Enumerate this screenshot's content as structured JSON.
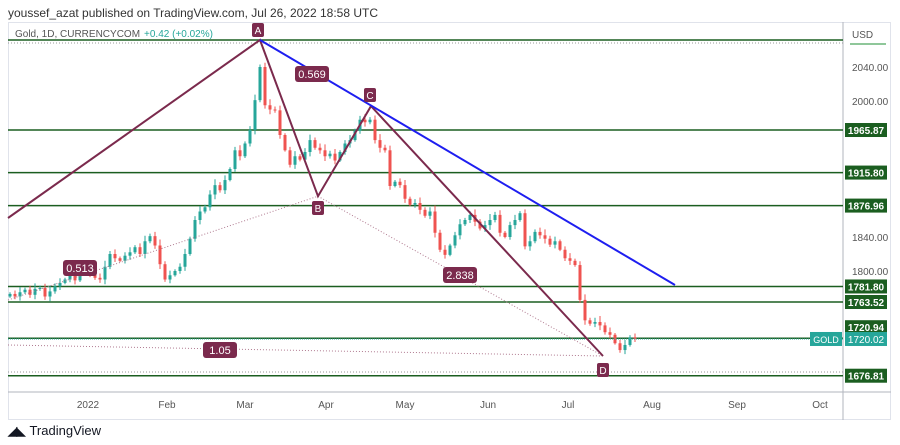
{
  "header": {
    "published": "youssef_azat published on TradingView.com, Jul 26, 2022 18:58 UTC"
  },
  "legend": {
    "symbol": "Gold, 1D, CURRENCYCOM",
    "change": "+0.42 (+0.02%)"
  },
  "footer": {
    "brand": "TradingView",
    "logo_icon": "tradingview-logo-icon"
  },
  "colors": {
    "up": "#26a69a",
    "down": "#ef5350",
    "levels": "#1b5e20",
    "pattern": "#7b2a4d",
    "trendline": "#1e1ef0",
    "current": "#26a69a"
  },
  "chart_data": {
    "type": "candlestick",
    "currency": "USD",
    "y_ticks": [
      "2040.00",
      "2000.00",
      "1840.00",
      "1800.00"
    ],
    "y_tick_values": [
      2040,
      2000,
      1840,
      1800
    ],
    "x_ticks": [
      "2022",
      "Feb",
      "Mar",
      "Apr",
      "May",
      "Jun",
      "Jul",
      "Aug",
      "Sep",
      "Oct"
    ],
    "closes": [
      1773,
      1770,
      1775,
      1778,
      1772,
      1779,
      1780,
      1770,
      1776,
      1782,
      1786,
      1790,
      1795,
      1789,
      1798,
      1805,
      1798,
      1792,
      1790,
      1805,
      1820,
      1815,
      1812,
      1818,
      1822,
      1828,
      1820,
      1835,
      1841,
      1830,
      1808,
      1790,
      1795,
      1800,
      1805,
      1820,
      1838,
      1860,
      1870,
      1875,
      1890,
      1901,
      1895,
      1907,
      1920,
      1942,
      1935,
      1950,
      1966,
      2001,
      2040,
      1995,
      1990,
      1989,
      1960,
      1942,
      1925,
      1935,
      1931,
      1940,
      1954,
      1945,
      1942,
      1935,
      1938,
      1930,
      1940,
      1950,
      1954,
      1965,
      1978,
      1975,
      1978,
      1954,
      1945,
      1942,
      1900,
      1905,
      1901,
      1885,
      1878,
      1880,
      1872,
      1865,
      1870,
      1845,
      1825,
      1819,
      1830,
      1842,
      1855,
      1860,
      1866,
      1858,
      1850,
      1854,
      1860,
      1866,
      1845,
      1840,
      1854,
      1860,
      1868,
      1829,
      1835,
      1846,
      1842,
      1838,
      1831,
      1835,
      1825,
      1815,
      1812,
      1807,
      1766,
      1742,
      1738,
      1740,
      1736,
      1728,
      1725,
      1715,
      1707,
      1713,
      1722,
      1720
    ],
    "levels": [
      {
        "price": 2071.8,
        "label": ""
      },
      {
        "price": 1965.87,
        "label": "1965.87"
      },
      {
        "price": 1915.8,
        "label": "1915.80"
      },
      {
        "price": 1876.96,
        "label": "1876.96"
      },
      {
        "price": 1781.8,
        "label": "1781.80"
      },
      {
        "price": 1763.52,
        "label": "1763.52"
      },
      {
        "price": 1720.94,
        "label": "1720.94"
      },
      {
        "price": 1676.81,
        "label": "1676.81"
      }
    ],
    "current": {
      "name": "GOLD",
      "price": "1720.02"
    },
    "pattern_points": [
      {
        "name": "A",
        "price": 2071.8
      },
      {
        "name": "B",
        "price": 1888
      },
      {
        "name": "C",
        "price": 1994
      },
      {
        "name": "D",
        "price": 1700
      }
    ],
    "ratios": [
      "0.513",
      "0.569",
      "2.838",
      "1.05"
    ]
  }
}
